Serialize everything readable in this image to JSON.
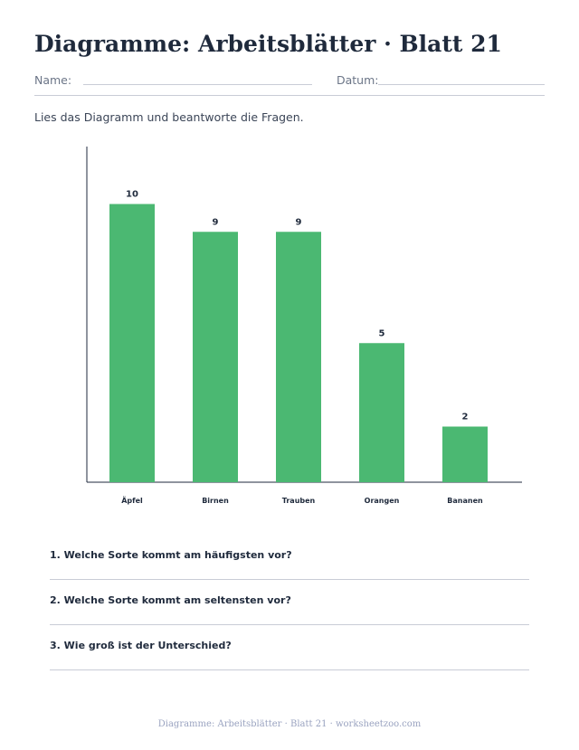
{
  "header": {
    "title": "Diagramme: Arbeitsblätter · Blatt 21",
    "name_label": "Name:",
    "date_label": "Datum:"
  },
  "instructions": "Lies das Diagramm und beantworte die Fragen.",
  "chart_data": {
    "type": "bar",
    "categories": [
      "Äpfel",
      "Birnen",
      "Trauben",
      "Orangen",
      "Bananen"
    ],
    "values": [
      10,
      9,
      9,
      5,
      2
    ],
    "ylim": [
      0,
      12
    ],
    "bar_color": "#4bb872",
    "grid": false
  },
  "questions": [
    "1. Welche Sorte kommt am häufigsten vor?",
    "2. Welche Sorte kommt am seltensten vor?",
    "3. Wie groß ist der Unterschied?"
  ],
  "footer": "Diagramme: Arbeitsblätter · Blatt 21 · worksheetzoo.com"
}
